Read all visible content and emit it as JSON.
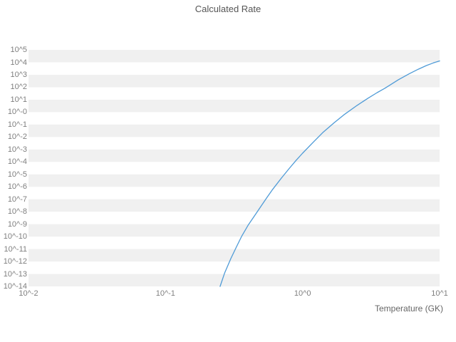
{
  "chart_data": {
    "type": "line",
    "title": "Calculated Rate",
    "xlabel": "Temperature (GK)",
    "ylabel": "",
    "x_scale": "log",
    "y_scale": "log",
    "xlim_log": [
      -2,
      1
    ],
    "ylim_log": [
      -14,
      5
    ],
    "grid": "horizontal-stripes",
    "legend": "none",
    "line_color": "#4f9bd7",
    "stripe_color": "#f0f0f0",
    "x_tick_labels": [
      "10^-2",
      "10^-1",
      "10^0",
      "10^1"
    ],
    "x_tick_log": [
      -2,
      -1,
      0,
      1
    ],
    "y_tick_labels": [
      "10^5",
      "10^4",
      "10^3",
      "10^2",
      "10^1",
      "10^-0",
      "10^-1",
      "10^-2",
      "10^-3",
      "10^-4",
      "10^-5",
      "10^-6",
      "10^-7",
      "10^-8",
      "10^-9",
      "10^-10",
      "10^-11",
      "10^-12",
      "10^-13",
      "10^-14"
    ],
    "y_tick_log": [
      5,
      4,
      3,
      2,
      1,
      0,
      -1,
      -2,
      -3,
      -4,
      -5,
      -6,
      -7,
      -8,
      -9,
      -10,
      -11,
      -12,
      -13,
      -14
    ],
    "series": [
      {
        "name": "calculated-rate",
        "x": [
          0.25,
          0.27,
          0.3,
          0.33,
          0.36,
          0.4,
          0.45,
          0.5,
          0.55,
          0.6,
          0.7,
          0.8,
          0.9,
          1.0,
          1.2,
          1.4,
          1.7,
          2.0,
          2.5,
          3.0,
          3.5,
          4.0,
          5.0,
          6.0,
          7.0,
          8.0,
          9.0,
          10.0
        ],
        "y": [
          1e-14,
          1.2e-13,
          1.8e-12,
          1.6e-11,
          1.1e-10,
          8e-10,
          5.5e-09,
          3e-08,
          1.4e-07,
          5.5e-07,
          5e-06,
          3e-05,
          0.00014,
          0.0005,
          0.004,
          0.022,
          0.14,
          0.6,
          3.5,
          13,
          37,
          85,
          400,
          1200,
          2800,
          5500,
          9000,
          13000
        ]
      }
    ]
  }
}
